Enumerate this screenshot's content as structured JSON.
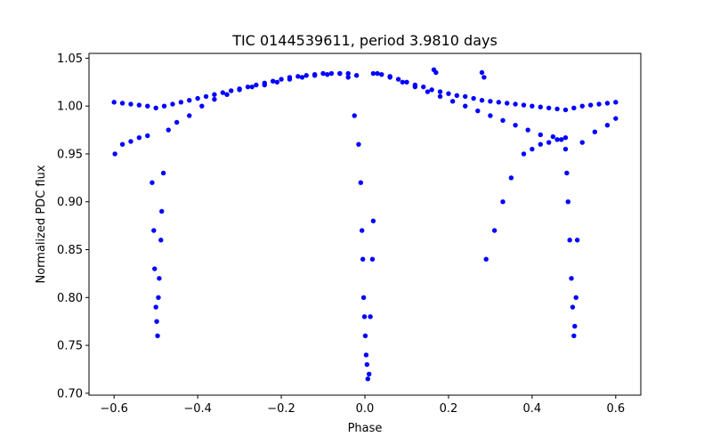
{
  "chart_data": {
    "type": "scatter",
    "title": "TIC 0144539611, period 3.9810 days",
    "xlabel": "Phase",
    "ylabel": "Normalized PDC flux",
    "xlim": [
      -0.66,
      0.66
    ],
    "ylim": [
      0.698,
      1.055
    ],
    "xticks": [
      -0.6,
      -0.4,
      -0.2,
      0.0,
      0.2,
      0.4,
      0.6
    ],
    "xtick_labels": [
      "−0.6",
      "−0.4",
      "−0.2",
      "0.0",
      "0.2",
      "0.4",
      "0.6"
    ],
    "yticks": [
      0.7,
      0.75,
      0.8,
      0.85,
      0.9,
      0.95,
      1.0,
      1.05
    ],
    "ytick_labels": [
      "0.70",
      "0.75",
      "0.80",
      "0.85",
      "0.90",
      "0.95",
      "1.00",
      "1.05"
    ],
    "grid": false,
    "marker_color": "#0000ff",
    "series": [
      {
        "x": [
          -0.598,
          -0.58,
          -0.56,
          -0.54,
          -0.52,
          -0.509,
          -0.505,
          -0.503,
          -0.5,
          -0.498,
          -0.496,
          -0.494,
          -0.492,
          -0.488,
          -0.486,
          -0.482,
          -0.47,
          -0.45,
          -0.42,
          -0.39,
          -0.36,
          -0.33,
          -0.3,
          -0.27,
          -0.24,
          -0.21,
          -0.18,
          -0.15,
          -0.12,
          -0.09,
          -0.06,
          -0.04,
          -0.025,
          -0.015,
          -0.01,
          -0.007,
          -0.005,
          -0.003,
          -0.001,
          0.001,
          0.003,
          0.005,
          0.007,
          0.01,
          0.013,
          0.018,
          0.02,
          0.03,
          0.06,
          0.09,
          0.12,
          0.15,
          0.18,
          0.21,
          0.24,
          0.27,
          0.3,
          0.33,
          0.36,
          0.39,
          0.42,
          0.45,
          0.47,
          0.48,
          0.483,
          0.486,
          0.49,
          0.494,
          0.497,
          0.5,
          0.502,
          0.505,
          0.508,
          0.52,
          0.55,
          0.58,
          0.6,
          0.29,
          0.31,
          0.33,
          0.35,
          0.38,
          0.4,
          0.42,
          0.44,
          0.46,
          0.48
        ],
        "y": [
          0.95,
          0.96,
          0.963,
          0.967,
          0.969,
          0.92,
          0.87,
          0.83,
          0.79,
          0.775,
          0.76,
          0.8,
          0.82,
          0.86,
          0.89,
          0.93,
          0.975,
          0.983,
          0.99,
          1.0,
          1.007,
          1.012,
          1.017,
          1.02,
          1.022,
          1.025,
          1.028,
          1.03,
          1.032,
          1.033,
          1.034,
          1.03,
          0.99,
          0.96,
          0.92,
          0.87,
          0.84,
          0.8,
          0.78,
          0.76,
          0.74,
          0.73,
          0.715,
          0.72,
          0.78,
          0.84,
          0.88,
          1.034,
          1.03,
          1.025,
          1.02,
          1.015,
          1.01,
          1.005,
          1.0,
          0.995,
          0.99,
          0.985,
          0.98,
          0.975,
          0.97,
          0.968,
          0.965,
          0.955,
          0.93,
          0.9,
          0.86,
          0.82,
          0.79,
          0.76,
          0.77,
          0.8,
          0.86,
          0.962,
          0.973,
          0.98,
          0.987,
          0.84,
          0.87,
          0.9,
          0.925,
          0.95,
          0.955,
          0.96,
          0.962,
          0.965,
          0.967
        ]
      },
      {
        "x": [
          -0.6,
          -0.58,
          -0.56,
          -0.54,
          -0.52,
          -0.5,
          -0.48,
          -0.46,
          -0.44,
          -0.42,
          -0.4,
          -0.38,
          -0.36,
          -0.34,
          -0.32,
          -0.3,
          -0.28,
          -0.26,
          -0.24,
          -0.22,
          -0.2,
          -0.18,
          -0.16,
          -0.14,
          -0.12,
          -0.1,
          -0.08,
          -0.06,
          -0.04,
          -0.02,
          0.02,
          0.04,
          0.06,
          0.08,
          0.1,
          0.12,
          0.14,
          0.16,
          0.18,
          0.2,
          0.22,
          0.24,
          0.26,
          0.28,
          0.3,
          0.32,
          0.34,
          0.36,
          0.38,
          0.4,
          0.42,
          0.44,
          0.46,
          0.48,
          0.5,
          0.52,
          0.54,
          0.56,
          0.58,
          0.6,
          0.165,
          0.17,
          0.28,
          0.285
        ],
        "y": [
          1.004,
          1.003,
          1.002,
          1.001,
          1.0,
          0.998,
          1.0,
          1.002,
          1.004,
          1.006,
          1.008,
          1.01,
          1.012,
          1.014,
          1.016,
          1.018,
          1.02,
          1.022,
          1.024,
          1.026,
          1.028,
          1.03,
          1.031,
          1.032,
          1.033,
          1.034,
          1.034,
          1.034,
          1.034,
          1.032,
          1.034,
          1.033,
          1.031,
          1.028,
          1.025,
          1.022,
          1.02,
          1.017,
          1.015,
          1.013,
          1.011,
          1.01,
          1.008,
          1.006,
          1.005,
          1.004,
          1.003,
          1.002,
          1.001,
          1.0,
          0.999,
          0.998,
          0.997,
          0.996,
          0.998,
          1.0,
          1.001,
          1.002,
          1.003,
          1.004,
          1.038,
          1.035,
          1.035,
          1.03
        ]
      }
    ]
  }
}
